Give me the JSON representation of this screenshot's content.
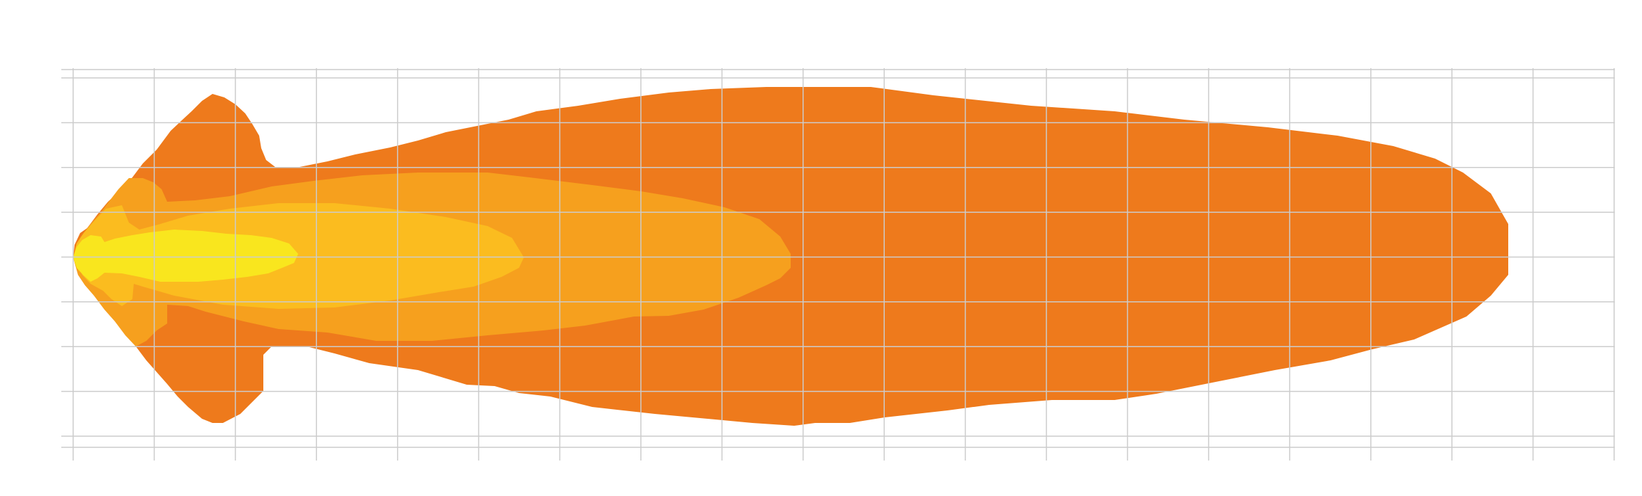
{
  "diagram": {
    "kind": "light-beam-isolux-pattern",
    "background_color": "#ffffff",
    "grid": {
      "visible": true,
      "color": "#cccccc",
      "vertical_line_count": 20,
      "horizontal_line_count": 9
    },
    "zones": [
      {
        "name": "outer-beam-zone",
        "color": "#EE7A1C"
      },
      {
        "name": "middle-beam-zone",
        "color": "#F6A01E"
      },
      {
        "name": "inner-beam-zone",
        "color": "#FBBC1F"
      },
      {
        "name": "hotspot-zone",
        "color": "#F9E61E"
      }
    ]
  }
}
